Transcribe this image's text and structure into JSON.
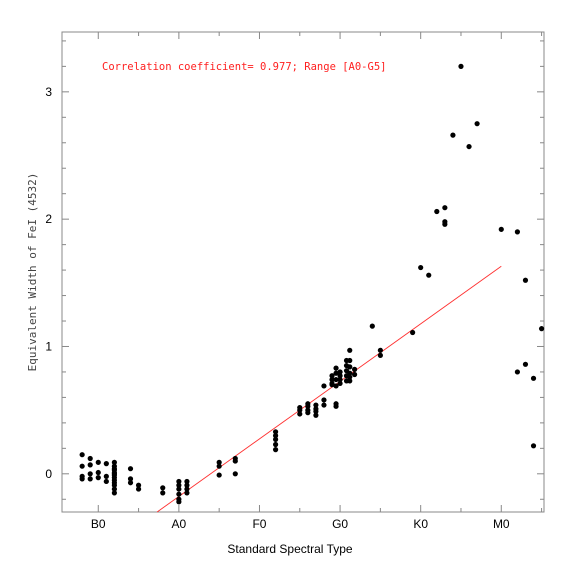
{
  "chart_data": {
    "type": "scatter",
    "xlabel": "Standard Spectral Type",
    "ylabel": "Equivalent Width of FeI (4532)",
    "annotation": "Correlation coefficient= 0.977; Range [A0-G5]",
    "x_ticks": [
      {
        "value": 0,
        "label": "B0"
      },
      {
        "value": 10,
        "label": "A0"
      },
      {
        "value": 20,
        "label": "F0"
      },
      {
        "value": 30,
        "label": "G0"
      },
      {
        "value": 40,
        "label": "K0"
      },
      {
        "value": 50,
        "label": "M0"
      }
    ],
    "y_ticks": [
      0,
      1,
      2,
      3
    ],
    "xlim": [
      -4.5,
      55.3
    ],
    "ylim": [
      -0.3,
      3.47
    ],
    "grid": false,
    "fit_line": {
      "x": [
        7.3,
        50
      ],
      "y": [
        -0.32,
        1.63
      ],
      "color": "#ff3030"
    },
    "series": [
      {
        "points": [
          [
            -2,
            0.15
          ],
          [
            -2,
            0.06
          ],
          [
            -2,
            -0.02
          ],
          [
            -2,
            -0.04
          ],
          [
            -1,
            0.12
          ],
          [
            -1,
            0.07
          ],
          [
            -1,
            0.0
          ],
          [
            -1,
            -0.04
          ],
          [
            0,
            0.09
          ],
          [
            0,
            0.01
          ],
          [
            0,
            -0.03
          ],
          [
            1,
            0.08
          ],
          [
            1,
            -0.02
          ],
          [
            1,
            -0.06
          ],
          [
            2,
            0.09
          ],
          [
            2,
            0.06
          ],
          [
            2,
            0.04
          ],
          [
            2,
            0.03
          ],
          [
            2,
            0.01
          ],
          [
            2,
            0.0
          ],
          [
            2,
            -0.01
          ],
          [
            2,
            -0.03
          ],
          [
            2,
            -0.05
          ],
          [
            2,
            -0.07
          ],
          [
            2,
            -0.09
          ],
          [
            2,
            -0.12
          ],
          [
            2,
            -0.15
          ],
          [
            4,
            0.04
          ],
          [
            4,
            -0.04
          ],
          [
            4,
            -0.07
          ],
          [
            5,
            -0.09
          ],
          [
            5,
            -0.12
          ],
          [
            8,
            -0.11
          ],
          [
            8,
            -0.15
          ],
          [
            10,
            -0.06
          ],
          [
            10,
            -0.09
          ],
          [
            10,
            -0.12
          ],
          [
            10,
            -0.16
          ],
          [
            10,
            -0.2
          ],
          [
            10,
            -0.22
          ],
          [
            11,
            -0.06
          ],
          [
            11,
            -0.09
          ],
          [
            11,
            -0.12
          ],
          [
            11,
            -0.15
          ],
          [
            15,
            0.09
          ],
          [
            15,
            0.06
          ],
          [
            15,
            -0.01
          ],
          [
            17,
            0.12
          ],
          [
            17,
            0.1
          ],
          [
            17,
            0.0
          ],
          [
            22,
            0.33
          ],
          [
            22,
            0.3
          ],
          [
            22,
            0.27
          ],
          [
            22,
            0.23
          ],
          [
            22,
            0.19
          ],
          [
            25,
            0.52
          ],
          [
            25,
            0.5
          ],
          [
            25,
            0.47
          ],
          [
            26,
            0.55
          ],
          [
            26,
            0.53
          ],
          [
            26,
            0.5
          ],
          [
            26,
            0.48
          ],
          [
            27,
            0.54
          ],
          [
            27,
            0.51
          ],
          [
            27,
            0.49
          ],
          [
            27,
            0.46
          ],
          [
            28,
            0.58
          ],
          [
            28,
            0.54
          ],
          [
            28,
            0.69
          ],
          [
            29,
            0.77
          ],
          [
            29,
            0.74
          ],
          [
            29,
            0.71
          ],
          [
            29,
            0.7
          ],
          [
            29.5,
            0.83
          ],
          [
            29.5,
            0.79
          ],
          [
            29.5,
            0.74
          ],
          [
            29.5,
            0.69
          ],
          [
            29.5,
            0.55
          ],
          [
            29.5,
            0.53
          ],
          [
            30,
            0.8
          ],
          [
            30,
            0.77
          ],
          [
            30,
            0.74
          ],
          [
            30,
            0.71
          ],
          [
            30.8,
            0.89
          ],
          [
            30.8,
            0.85
          ],
          [
            30.8,
            0.81
          ],
          [
            30.8,
            0.77
          ],
          [
            30.8,
            0.73
          ],
          [
            31.2,
            0.97
          ],
          [
            31.2,
            0.89
          ],
          [
            31.2,
            0.84
          ],
          [
            31.2,
            0.79
          ],
          [
            31.2,
            0.76
          ],
          [
            31.2,
            0.73
          ],
          [
            31.8,
            0.82
          ],
          [
            31.8,
            0.78
          ],
          [
            34,
            1.16
          ],
          [
            35,
            0.97
          ],
          [
            35,
            0.93
          ],
          [
            39,
            1.11
          ],
          [
            40,
            1.62
          ],
          [
            41,
            1.56
          ],
          [
            42,
            2.06
          ],
          [
            43,
            2.09
          ],
          [
            43,
            1.98
          ],
          [
            43,
            1.96
          ],
          [
            44,
            2.66
          ],
          [
            45,
            3.2
          ],
          [
            46,
            2.57
          ],
          [
            47,
            2.75
          ],
          [
            50,
            1.92
          ],
          [
            52,
            1.9
          ],
          [
            53,
            1.52
          ],
          [
            53,
            0.86
          ],
          [
            52,
            0.8
          ],
          [
            54,
            0.75
          ],
          [
            55,
            1.14
          ],
          [
            54,
            0.22
          ]
        ]
      }
    ]
  }
}
